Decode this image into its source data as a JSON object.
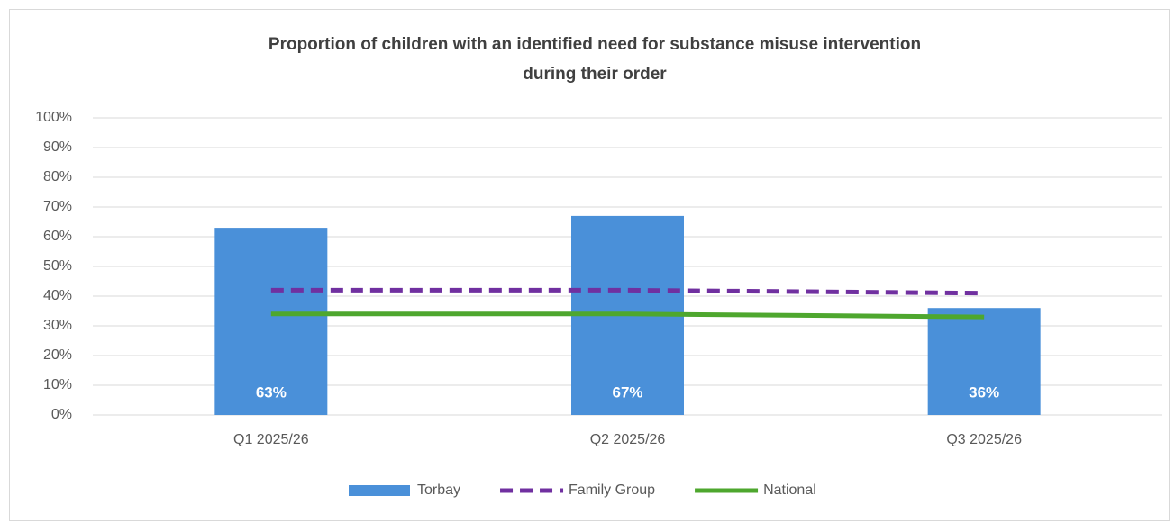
{
  "chart_data": {
    "type": "bar",
    "title": [
      "Proportion of children with an identified need for substance misuse intervention",
      "during their order"
    ],
    "categories": [
      "Q1 2025/26",
      "Q2 2025/26",
      "Q3 2025/26"
    ],
    "series": [
      {
        "name": "Torbay",
        "type": "bar",
        "color": "#4a90d9",
        "values": [
          63,
          67,
          36
        ],
        "value_labels": [
          "63%",
          "67%",
          "36%"
        ]
      },
      {
        "name": "Family Group",
        "type": "line",
        "dashed": true,
        "color": "#7030a0",
        "values": [
          42,
          42,
          41
        ]
      },
      {
        "name": "National",
        "type": "line",
        "color": "#4ea72e",
        "values": [
          34,
          34,
          33
        ]
      }
    ],
    "ylim": [
      0,
      100
    ],
    "yticks": [
      {
        "value": 0,
        "label": "0%"
      },
      {
        "value": 10,
        "label": "10%"
      },
      {
        "value": 20,
        "label": "20%"
      },
      {
        "value": 30,
        "label": "30%"
      },
      {
        "value": 40,
        "label": "40%"
      },
      {
        "value": 50,
        "label": "50%"
      },
      {
        "value": 60,
        "label": "60%"
      },
      {
        "value": 70,
        "label": "70%"
      },
      {
        "value": 80,
        "label": "80%"
      },
      {
        "value": 90,
        "label": "90%"
      },
      {
        "value": 100,
        "label": "100%"
      }
    ],
    "grid": true,
    "legend": "bottom"
  }
}
